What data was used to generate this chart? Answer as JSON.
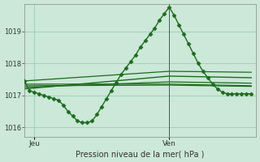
{
  "background_color": "#cce8d8",
  "grid_color": "#99ccbb",
  "line_color": "#1a6e1a",
  "marker_color": "#1a6e1a",
  "xlabel": "Pression niveau de la mer( hPa )",
  "ylim": [
    1015.7,
    1019.85
  ],
  "yticks": [
    1016,
    1017,
    1018,
    1019
  ],
  "xlim": [
    0,
    48
  ],
  "x_jeu": 2,
  "x_ven": 30,
  "main_series": {
    "x": [
      0,
      1,
      2,
      3,
      4,
      5,
      6,
      7,
      8,
      9,
      10,
      11,
      12,
      13,
      14,
      15,
      16,
      17,
      18,
      19,
      20,
      21,
      22,
      23,
      24,
      25,
      26,
      27,
      28,
      29,
      30,
      31,
      32,
      33,
      34,
      35,
      36,
      37,
      38,
      39,
      40,
      41,
      42,
      43,
      44,
      45,
      46,
      47
    ],
    "y": [
      1017.45,
      1017.15,
      1017.1,
      1017.05,
      1017.0,
      1016.95,
      1016.9,
      1016.85,
      1016.7,
      1016.5,
      1016.35,
      1016.2,
      1016.15,
      1016.15,
      1016.2,
      1016.4,
      1016.65,
      1016.9,
      1017.15,
      1017.4,
      1017.65,
      1017.85,
      1018.05,
      1018.25,
      1018.5,
      1018.7,
      1018.9,
      1019.1,
      1019.35,
      1019.55,
      1019.75,
      1019.5,
      1019.2,
      1018.9,
      1018.6,
      1018.3,
      1018.0,
      1017.75,
      1017.55,
      1017.35,
      1017.2,
      1017.1,
      1017.05,
      1017.05,
      1017.05,
      1017.05,
      1017.05,
      1017.05
    ],
    "marker": "D",
    "markersize": 2.5,
    "lw": 1.0
  },
  "flat_lines": [
    {
      "x": [
        0,
        30,
        47
      ],
      "y": [
        1017.35,
        1017.35,
        1017.3
      ],
      "lw": 0.9
    },
    {
      "x": [
        0,
        30,
        47
      ],
      "y": [
        1017.3,
        1017.32,
        1017.28
      ],
      "lw": 0.9
    },
    {
      "x": [
        0,
        30,
        47
      ],
      "y": [
        1017.25,
        1017.42,
        1017.38
      ],
      "lw": 0.9
    },
    {
      "x": [
        0,
        30,
        47
      ],
      "y": [
        1017.2,
        1017.6,
        1017.55
      ],
      "lw": 1.0
    },
    {
      "x": [
        0,
        30,
        47
      ],
      "y": [
        1017.45,
        1017.75,
        1017.72
      ],
      "lw": 0.9
    }
  ],
  "vline_x": 30,
  "figsize": [
    3.2,
    2.0
  ],
  "dpi": 100
}
